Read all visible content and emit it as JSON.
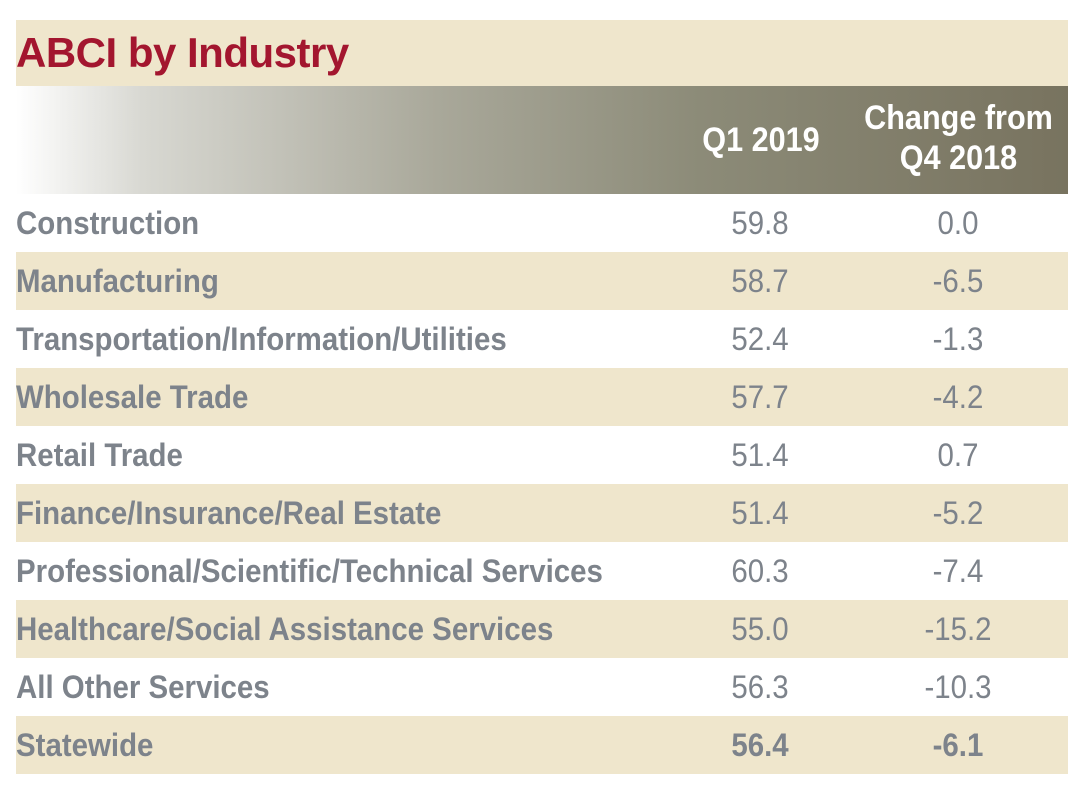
{
  "chart_data": {
    "type": "table",
    "title": "ABCI by Industry",
    "columns": [
      "",
      "Q1 2019",
      "Change from Q4 2018"
    ],
    "header": {
      "q1_label": "Q1 2019",
      "change_line1": "Change from",
      "change_line2": "Q4 2018"
    },
    "rows": [
      {
        "industry": "Construction",
        "q1_2019": "59.8",
        "change": "0.0"
      },
      {
        "industry": "Manufacturing",
        "q1_2019": "58.7",
        "change": "-6.5"
      },
      {
        "industry": "Transportation/Information/Utilities",
        "q1_2019": "52.4",
        "change": "-1.3"
      },
      {
        "industry": "Wholesale Trade",
        "q1_2019": "57.7",
        "change": "-4.2"
      },
      {
        "industry": "Retail Trade",
        "q1_2019": "51.4",
        "change": "0.7"
      },
      {
        "industry": "Finance/Insurance/Real Estate",
        "q1_2019": "51.4",
        "change": "-5.2"
      },
      {
        "industry": "Professional/Scientific/Technical Services",
        "q1_2019": "60.3",
        "change": "-7.4"
      },
      {
        "industry": "Healthcare/Social Assistance Services",
        "q1_2019": "55.0",
        "change": "-15.2"
      },
      {
        "industry": "All Other Services",
        "q1_2019": "56.3",
        "change": "-10.3"
      },
      {
        "industry": "Statewide",
        "q1_2019": "56.4",
        "change": "-6.1"
      }
    ]
  },
  "colors": {
    "title": "#a3162f",
    "row_shade": "#efe6cc",
    "text": "#7d838b",
    "header_dark": "#78735f"
  }
}
